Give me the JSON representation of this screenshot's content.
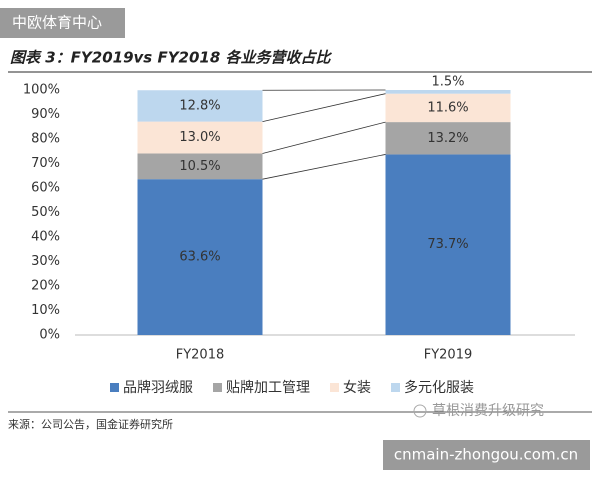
{
  "watermark": "中欧体育中心",
  "chart_data": {
    "type": "stacked-bar",
    "title": "图表 3：FY2019vs FY2018 各业务营收占比",
    "categories": [
      "FY2018",
      "FY2019"
    ],
    "series": [
      {
        "name": "品牌羽绒服",
        "color": "#4a7ebf",
        "values": [
          63.6,
          73.7
        ],
        "value_labels": [
          "63.6%",
          "73.7%"
        ]
      },
      {
        "name": "贴牌加工管理",
        "color": "#a5a5a5",
        "values": [
          10.5,
          13.2
        ],
        "value_labels": [
          "10.5%",
          "13.2%"
        ]
      },
      {
        "name": "女装",
        "color": "#fbe5d6",
        "values": [
          13.0,
          11.6
        ],
        "value_labels": [
          "13.0%",
          "11.6%"
        ]
      },
      {
        "name": "多元化服装",
        "color": "#bdd7ee",
        "values": [
          12.8,
          1.5
        ],
        "value_labels": [
          "12.8%",
          "1.5%"
        ]
      }
    ],
    "ylim": [
      0,
      100
    ],
    "yticks": [
      {
        "value": 0,
        "label": "0%"
      },
      {
        "value": 10,
        "label": "10%"
      },
      {
        "value": 20,
        "label": "20%"
      },
      {
        "value": 30,
        "label": "30%"
      },
      {
        "value": 40,
        "label": "40%"
      },
      {
        "value": 50,
        "label": "50%"
      },
      {
        "value": 60,
        "label": "60%"
      },
      {
        "value": 70,
        "label": "70%"
      },
      {
        "value": 80,
        "label": "80%"
      },
      {
        "value": 90,
        "label": "90%"
      },
      {
        "value": 100,
        "label": "100%"
      }
    ],
    "legend": "bottom",
    "source": "来源：公司公告，国金证券研究所"
  },
  "wechat": "草根消费升级研究",
  "site": "cnmain-zhongou.com.cn"
}
